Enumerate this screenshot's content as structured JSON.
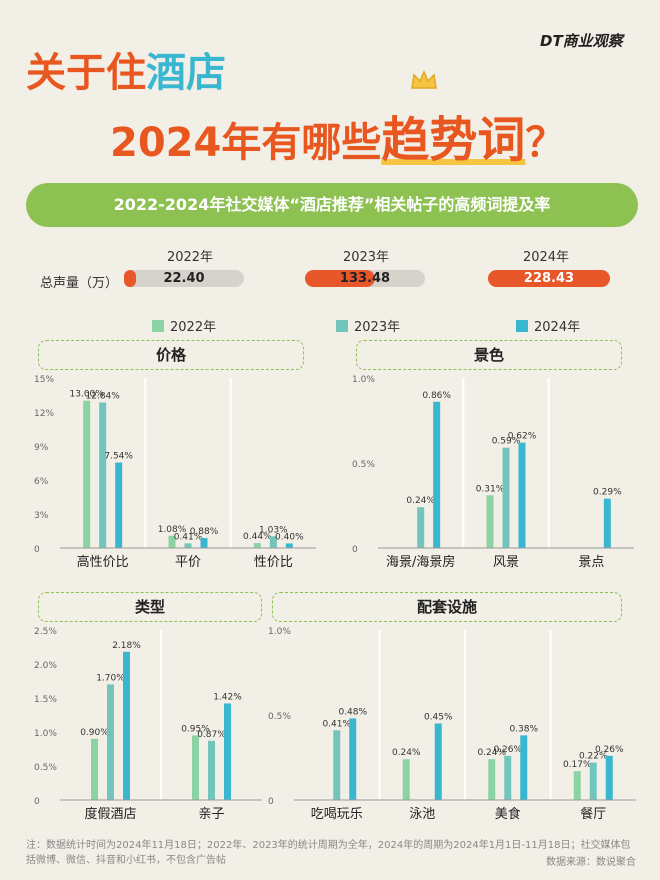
{
  "brand": "DT商业观察",
  "title": {
    "line1_a": "关于住",
    "line1_b": "酒店",
    "line2_a": "2024年有哪些",
    "line2_b": "趋势词",
    "line2_c": "？"
  },
  "subtitle": "2022-2024年社交媒体“酒店推荐”相关帖子的高频词提及率",
  "volume": {
    "label": "总声量（万）",
    "items": [
      {
        "year": "2022年",
        "value": "22.40",
        "fraction": 0.098
      },
      {
        "year": "2023年",
        "value": "133.48",
        "fraction": 0.584
      },
      {
        "year": "2024年",
        "value": "228.43",
        "fraction": 1.0
      }
    ]
  },
  "legend": [
    {
      "name": "2022年",
      "color": "#8cd3a4"
    },
    {
      "name": "2023年",
      "color": "#72c5bd"
    },
    {
      "name": "2024年",
      "color": "#39b6d0"
    }
  ],
  "colors": {
    "accent": "#e7572a",
    "green": "#8dc152",
    "s2022": "#8cd3a4",
    "s2023": "#72c5bd",
    "s2024": "#39b6d0"
  },
  "chart_data": [
    {
      "type": "bar",
      "title": "价格",
      "categories": [
        "高性价比",
        "平价",
        "性价比"
      ],
      "yticks": [
        "0",
        "3%",
        "6%",
        "9%",
        "12%",
        "15%"
      ],
      "ylim": [
        0,
        15
      ],
      "series": [
        {
          "name": "2022年",
          "values": [
            13.0,
            1.08,
            0.44
          ],
          "labels": [
            "13.00%",
            "1.08%",
            "0.44%"
          ]
        },
        {
          "name": "2023年",
          "values": [
            12.84,
            0.41,
            1.03
          ],
          "labels": [
            "12.84%",
            "0.41%",
            "1.03%"
          ]
        },
        {
          "name": "2024年",
          "values": [
            7.54,
            0.88,
            0.4
          ],
          "labels": [
            "7.54%",
            "0.88%",
            "0.40%"
          ]
        }
      ]
    },
    {
      "type": "bar",
      "title": "景色",
      "categories": [
        "海景/海景房",
        "风景",
        "景点"
      ],
      "yticks": [
        "0",
        "0.5%",
        "1.0%"
      ],
      "ylim": [
        0,
        1.0
      ],
      "series": [
        {
          "name": "2022年",
          "values": [
            null,
            0.31,
            null
          ],
          "labels": [
            "",
            "0.31%",
            ""
          ]
        },
        {
          "name": "2023年",
          "values": [
            0.24,
            0.59,
            null
          ],
          "labels": [
            "0.24%",
            "0.59%",
            ""
          ]
        },
        {
          "name": "2024年",
          "values": [
            0.86,
            0.62,
            0.29
          ],
          "labels": [
            "0.86%",
            "0.62%",
            "0.29%"
          ]
        }
      ]
    },
    {
      "type": "bar",
      "title": "类型",
      "categories": [
        "度假酒店",
        "亲子"
      ],
      "yticks": [
        "0",
        "0.5%",
        "1.0%",
        "1.5%",
        "2.0%",
        "2.5%"
      ],
      "ylim": [
        0,
        2.5
      ],
      "series": [
        {
          "name": "2022年",
          "values": [
            0.9,
            0.95
          ],
          "labels": [
            "0.90%",
            "0.95%"
          ]
        },
        {
          "name": "2023年",
          "values": [
            1.7,
            0.87
          ],
          "labels": [
            "1.70%",
            "0.87%"
          ]
        },
        {
          "name": "2024年",
          "values": [
            2.18,
            1.42
          ],
          "labels": [
            "2.18%",
            "1.42%"
          ]
        }
      ]
    },
    {
      "type": "bar",
      "title": "配套设施",
      "categories": [
        "吃喝玩乐",
        "泳池",
        "美食",
        "餐厅"
      ],
      "yticks": [
        "0",
        "0.5%",
        "1.0%"
      ],
      "ylim": [
        0,
        1.0
      ],
      "series": [
        {
          "name": "2022年",
          "values": [
            null,
            0.24,
            0.24,
            0.17
          ],
          "labels": [
            "",
            "0.24%",
            "0.24%",
            "0.17%"
          ]
        },
        {
          "name": "2023年",
          "values": [
            0.41,
            null,
            0.26,
            0.22
          ],
          "labels": [
            "0.41%",
            "",
            "0.26%",
            "0.22%"
          ]
        },
        {
          "name": "2024年",
          "values": [
            0.48,
            0.45,
            0.38,
            0.26
          ],
          "labels": [
            "0.48%",
            "0.45%",
            "0.38%",
            "0.26%"
          ]
        }
      ]
    }
  ],
  "footnote": "注：数据统计时间为2024年11月18日；2022年、2023年的统计周期为全年，2024年的周期为2024年1月1日-11月18日；社交媒体包括微博、微信、抖音和小红书，不包含广告帖",
  "source": "数据来源：数说聚合"
}
